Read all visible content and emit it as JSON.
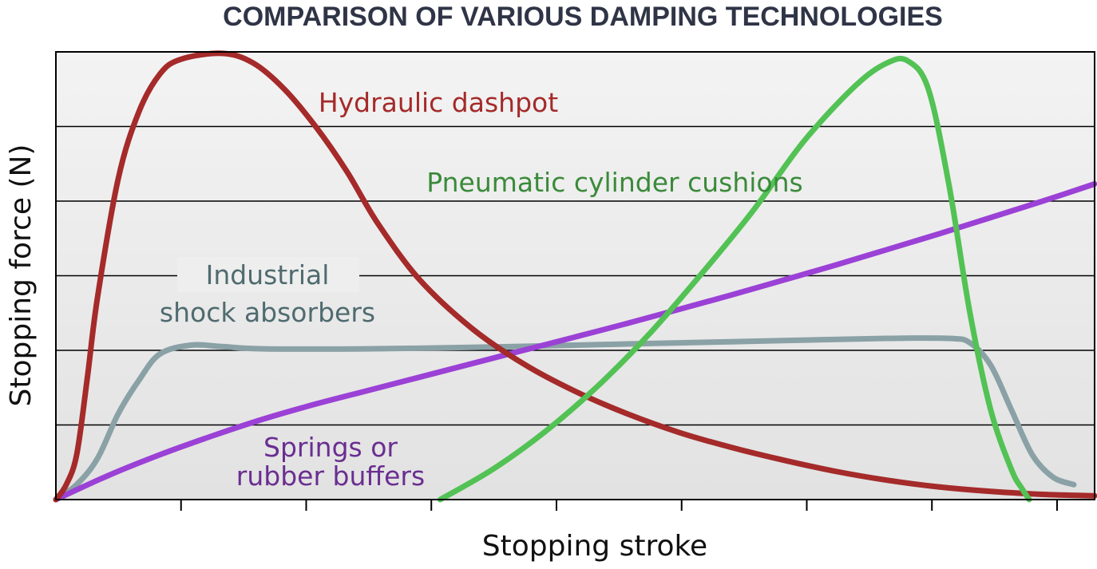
{
  "chart_data": {
    "type": "line",
    "title": "COMPARISON OF VARIOUS DAMPING TECHNOLOGIES",
    "xlabel": "Stopping stroke",
    "ylabel": "Stopping force (N)",
    "xlim": [
      0,
      100
    ],
    "ylim": [
      0,
      6
    ],
    "grid": true,
    "x_ticks": 8,
    "series": [
      {
        "name": "Hydraulic dashpot",
        "label_lines": [
          "Hydraulic dashpot"
        ],
        "color": "#a52a2a",
        "label_color": "#a52a2a",
        "points": [
          [
            0,
            0
          ],
          [
            1,
            0.2
          ],
          [
            2,
            0.6
          ],
          [
            3,
            1.6
          ],
          [
            4,
            2.7
          ],
          [
            6,
            4.3
          ],
          [
            8,
            5.2
          ],
          [
            10,
            5.7
          ],
          [
            12,
            5.9
          ],
          [
            16,
            5.98
          ],
          [
            19,
            5.85
          ],
          [
            22,
            5.5
          ],
          [
            25,
            5.0
          ],
          [
            28,
            4.4
          ],
          [
            31,
            3.7
          ],
          [
            35,
            2.95
          ],
          [
            40,
            2.3
          ],
          [
            45,
            1.82
          ],
          [
            50,
            1.45
          ],
          [
            55,
            1.15
          ],
          [
            60,
            0.9
          ],
          [
            65,
            0.7
          ],
          [
            70,
            0.53
          ],
          [
            75,
            0.38
          ],
          [
            80,
            0.26
          ],
          [
            85,
            0.17
          ],
          [
            90,
            0.11
          ],
          [
            95,
            0.07
          ],
          [
            100,
            0.05
          ]
        ]
      },
      {
        "name": "Pneumatic cylinder cushions",
        "label_lines": [
          "Pneumatic cylinder cushions"
        ],
        "color": "#52c254",
        "label_color": "#3a8a3a",
        "points": [
          [
            37,
            0
          ],
          [
            42,
            0.4
          ],
          [
            47,
            0.9
          ],
          [
            52,
            1.5
          ],
          [
            57,
            2.2
          ],
          [
            62,
            3.0
          ],
          [
            67,
            3.85
          ],
          [
            72,
            4.8
          ],
          [
            77,
            5.55
          ],
          [
            80,
            5.85
          ],
          [
            82,
            5.88
          ],
          [
            84,
            5.5
          ],
          [
            86,
            4.2
          ],
          [
            88,
            2.5
          ],
          [
            90,
            1.2
          ],
          [
            92,
            0.4
          ],
          [
            93,
            0.15
          ],
          [
            93.7,
            0
          ]
        ]
      },
      {
        "name": "Industrial shock absorbers",
        "label_lines": [
          "Industrial",
          "shock absorbers"
        ],
        "color": "#8aa1a6",
        "label_color": "#4f6b6f",
        "points": [
          [
            0,
            0
          ],
          [
            2,
            0.2
          ],
          [
            4,
            0.55
          ],
          [
            6,
            1.15
          ],
          [
            8,
            1.6
          ],
          [
            10,
            1.95
          ],
          [
            13,
            2.07
          ],
          [
            16,
            2.05
          ],
          [
            20,
            2.02
          ],
          [
            30,
            2.02
          ],
          [
            40,
            2.04
          ],
          [
            50,
            2.07
          ],
          [
            60,
            2.1
          ],
          [
            70,
            2.13
          ],
          [
            80,
            2.16
          ],
          [
            86,
            2.16
          ],
          [
            88,
            2.1
          ],
          [
            90,
            1.8
          ],
          [
            92,
            1.2
          ],
          [
            94,
            0.6
          ],
          [
            96,
            0.3
          ],
          [
            98,
            0.2
          ]
        ]
      },
      {
        "name": "Springs or rubber buffers",
        "label_lines": [
          "Springs or",
          "rubber buffers"
        ],
        "color": "#9b41d6",
        "label_color": "#6a2e91",
        "points": [
          [
            0,
            0
          ],
          [
            5,
            0.32
          ],
          [
            10,
            0.6
          ],
          [
            15,
            0.85
          ],
          [
            20,
            1.08
          ],
          [
            25,
            1.28
          ],
          [
            30,
            1.46
          ],
          [
            35,
            1.64
          ],
          [
            40,
            1.82
          ],
          [
            45,
            2.0
          ],
          [
            50,
            2.18
          ],
          [
            55,
            2.36
          ],
          [
            60,
            2.55
          ],
          [
            65,
            2.74
          ],
          [
            70,
            2.94
          ],
          [
            75,
            3.14
          ],
          [
            80,
            3.35
          ],
          [
            85,
            3.56
          ],
          [
            90,
            3.78
          ],
          [
            95,
            4.0
          ],
          [
            100,
            4.23
          ]
        ]
      }
    ]
  }
}
